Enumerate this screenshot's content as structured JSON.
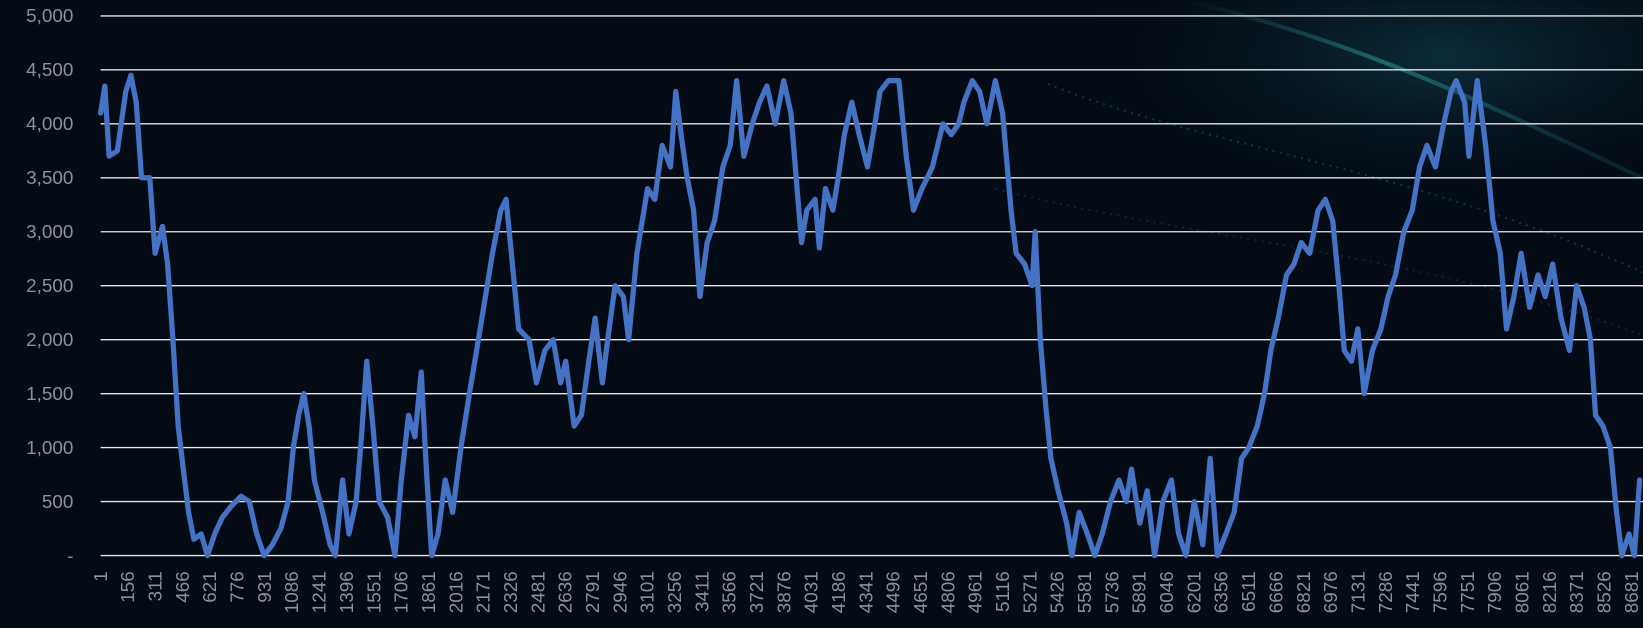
{
  "chart_data": {
    "type": "line",
    "color": "#4472c4",
    "grid": true,
    "xlim": [
      1,
      8746
    ],
    "ylim": [
      0,
      5000
    ],
    "yticks": [
      {
        "value": 0,
        "label": "-"
      },
      500,
      {
        "value": 1000,
        "label": "1,000"
      },
      {
        "value": 1500,
        "label": "1,500"
      },
      {
        "value": 2000,
        "label": "2,000"
      },
      {
        "value": 2500,
        "label": "2,500"
      },
      {
        "value": 3000,
        "label": "3,000"
      },
      {
        "value": 3500,
        "label": "3,500"
      },
      {
        "value": 4000,
        "label": "4,000"
      },
      {
        "value": 4500,
        "label": "4,500"
      },
      {
        "value": 5000,
        "label": "5,000"
      }
    ],
    "xticks": [
      1,
      156,
      311,
      466,
      621,
      776,
      931,
      1086,
      1241,
      1396,
      1551,
      1706,
      1861,
      2016,
      2171,
      2326,
      2481,
      2636,
      2791,
      2946,
      3101,
      3256,
      3411,
      3566,
      3721,
      3876,
      4031,
      4186,
      4341,
      4496,
      4651,
      4806,
      4961,
      5116,
      5271,
      5426,
      5581,
      5736,
      5891,
      6046,
      6201,
      6356,
      6511,
      6666,
      6821,
      6976,
      7131,
      7286,
      7441,
      7596,
      7751,
      7906,
      8061,
      8216,
      8371,
      8526,
      8681
    ],
    "x": [
      1,
      25,
      49,
      96,
      144,
      173,
      203,
      233,
      280,
      310,
      352,
      381,
      411,
      441,
      470,
      500,
      530,
      571,
      607,
      648,
      690,
      738,
      797,
      844,
      886,
      928,
      975,
      1023,
      1064,
      1094,
      1124,
      1153,
      1183,
      1213,
      1260,
      1302,
      1332,
      1373,
      1409,
      1450,
      1480,
      1510,
      1545,
      1581,
      1629,
      1670,
      1706,
      1747,
      1783,
      1819,
      1848,
      1878,
      1914,
      1955,
      1997,
      2044,
      2092,
      2133,
      2163,
      2223,
      2270,
      2300,
      2330,
      2371,
      2430,
      2472,
      2520,
      2567,
      2609,
      2638,
      2686,
      2727,
      2769,
      2805,
      2846,
      2876,
      2918,
      2965,
      2995,
      3042,
      3072,
      3102,
      3143,
      3185,
      3232,
      3262,
      3292,
      3327,
      3363,
      3399,
      3440,
      3482,
      3529,
      3571,
      3607,
      3648,
      3696,
      3737,
      3779,
      3826,
      3874,
      3915,
      3945,
      3975,
      4005,
      4052,
      4076,
      4111,
      4153,
      4183,
      4218,
      4260,
      4302,
      4349,
      4391,
      4420,
      4468,
      4527,
      4569,
      4610,
      4658,
      4717,
      4777,
      4824,
      4866,
      4896,
      4943,
      4985,
      5026,
      5074,
      5115,
      5163,
      5192,
      5240,
      5282,
      5300,
      5329,
      5359,
      5389,
      5430,
      5478,
      5508,
      5549,
      5596,
      5638,
      5680,
      5727,
      5775,
      5816,
      5846,
      5893,
      5935,
      5977,
      6024,
      6072,
      6113,
      6155,
      6202,
      6250,
      6292,
      6333,
      6381,
      6428,
      6470,
      6511,
      6559,
      6600,
      6636,
      6678,
      6725,
      6767,
      6808,
      6856,
      6904,
      6945,
      6987,
      7022,
      7052,
      7093,
      7129,
      7165,
      7212,
      7260,
      7301,
      7343,
      7390,
      7438,
      7479,
      7521,
      7569,
      7616,
      7658,
      7687,
      7735,
      7759,
      7806,
      7854,
      7895,
      7937,
      7972,
      8014,
      8055,
      8103,
      8151,
      8192,
      8234,
      8281,
      8329,
      8370,
      8412,
      8448,
      8477,
      8519,
      8561,
      8596,
      8626,
      8667,
      8697,
      8727
    ],
    "values": [
      4100,
      4350,
      3700,
      3750,
      4300,
      4450,
      4200,
      3500,
      3500,
      2800,
      3050,
      2700,
      2000,
      1200,
      800,
      400,
      150,
      200,
      0,
      200,
      350,
      450,
      550,
      500,
      200,
      0,
      100,
      250,
      500,
      1000,
      1300,
      1500,
      1200,
      700,
      400,
      100,
      0,
      700,
      200,
      500,
      1100,
      1800,
      1200,
      500,
      350,
      0,
      700,
      1300,
      1100,
      1700,
      800,
      0,
      200,
      700,
      400,
      1000,
      1500,
      1900,
      2200,
      2800,
      3200,
      3300,
      2800,
      2100,
      2000,
      1600,
      1900,
      2000,
      1600,
      1800,
      1200,
      1300,
      1800,
      2200,
      1600,
      2000,
      2500,
      2400,
      2000,
      2800,
      3100,
      3400,
      3300,
      3800,
      3600,
      4300,
      3900,
      3500,
      3200,
      2400,
      2900,
      3100,
      3600,
      3800,
      4400,
      3700,
      4000,
      4200,
      4350,
      4000,
      4400,
      4100,
      3500,
      2900,
      3200,
      3300,
      2850,
      3400,
      3200,
      3500,
      3900,
      4200,
      3900,
      3600,
      4000,
      4300,
      4400,
      4400,
      3700,
      3200,
      3400,
      3600,
      4000,
      3900,
      4000,
      4200,
      4400,
      4300,
      4000,
      4400,
      4100,
      3200,
      2800,
      2700,
      2500,
      3000,
      2000,
      1400,
      900,
      600,
      300,
      0,
      400,
      200,
      0,
      200,
      500,
      700,
      500,
      800,
      300,
      600,
      0,
      500,
      700,
      200,
      0,
      500,
      100,
      900,
      0,
      200,
      400,
      900,
      1000,
      1200,
      1500,
      1900,
      2200,
      2600,
      2700,
      2900,
      2800,
      3200,
      3300,
      3100,
      2500,
      1900,
      1800,
      2100,
      1500,
      1900,
      2100,
      2400,
      2600,
      3000,
      3200,
      3600,
      3800,
      3600,
      4000,
      4300,
      4400,
      4200,
      3700,
      4400,
      3800,
      3100,
      2800,
      2100,
      2400,
      2800,
      2300,
      2600,
      2400,
      2700,
      2200,
      1900,
      2500,
      2300,
      2000,
      1300,
      1200,
      1000,
      400,
      0,
      200,
      0,
      700
    ]
  }
}
